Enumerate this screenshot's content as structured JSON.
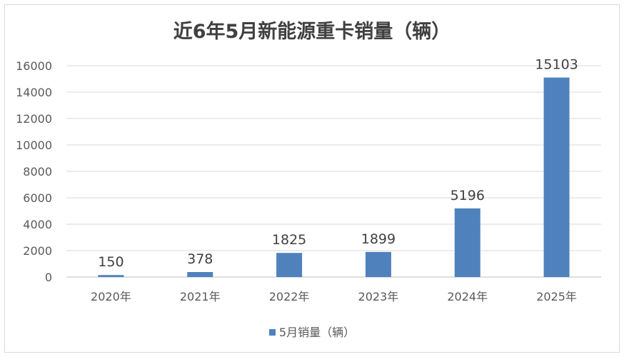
{
  "chart_data": {
    "type": "bar",
    "title": "近6年5月新能源重卡销量（辆）",
    "categories": [
      "2020年",
      "2021年",
      "2022年",
      "2023年",
      "2024年",
      "2025年"
    ],
    "series": [
      {
        "name": "5月销量（辆）",
        "values": [
          150,
          378,
          1825,
          1899,
          5196,
          15103
        ],
        "color": "#4f81bd"
      }
    ],
    "ylim": [
      0,
      16000
    ],
    "yticks": [
      0,
      2000,
      4000,
      6000,
      8000,
      10000,
      12000,
      14000,
      16000
    ],
    "grid": true,
    "legend_position": "bottom",
    "data_labels": true
  }
}
